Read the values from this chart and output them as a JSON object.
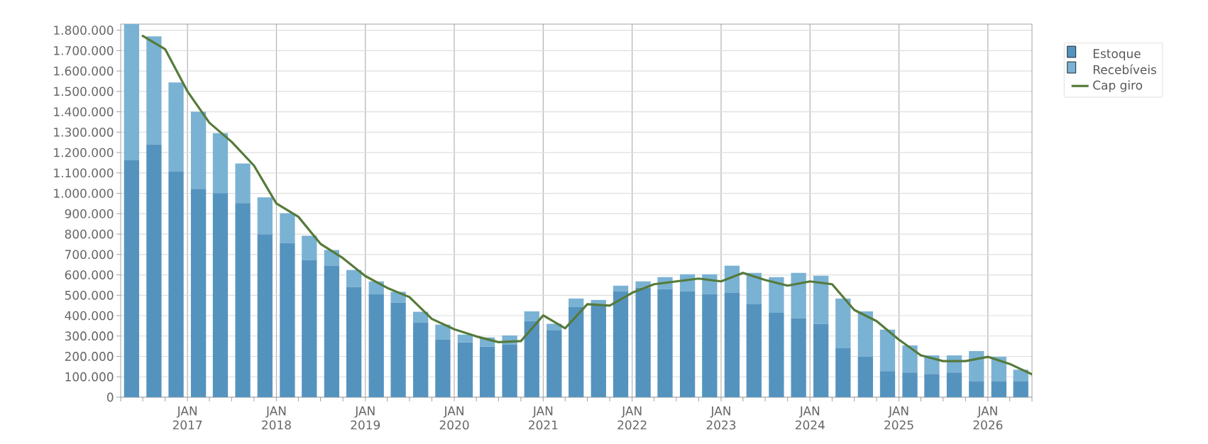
{
  "chart_data": {
    "type": "bar",
    "stacked": true,
    "grid": true,
    "legend": "right",
    "xlim": [
      "2016-04-01",
      "2026-07-01"
    ],
    "ylim": [
      0,
      1830000
    ],
    "xticks": [
      {
        "value": "2016-04-01",
        "label": null
      },
      {
        "value": "2016-07-01",
        "label": null
      },
      {
        "value": "2016-10-01",
        "label": null
      },
      {
        "value": "2017-01-01",
        "label": "JAN 2017"
      },
      {
        "value": "2017-04-01",
        "label": null
      },
      {
        "value": "2017-07-01",
        "label": null
      },
      {
        "value": "2017-10-01",
        "label": null
      },
      {
        "value": "2018-01-01",
        "label": "JAN 2018"
      },
      {
        "value": "2018-04-01",
        "label": null
      },
      {
        "value": "2018-07-01",
        "label": null
      },
      {
        "value": "2018-10-01",
        "label": null
      },
      {
        "value": "2019-01-01",
        "label": "JAN 2019"
      },
      {
        "value": "2019-04-01",
        "label": null
      },
      {
        "value": "2019-07-01",
        "label": null
      },
      {
        "value": "2019-10-01",
        "label": null
      },
      {
        "value": "2020-01-01",
        "label": "JAN 2020"
      },
      {
        "value": "2020-04-01",
        "label": null
      },
      {
        "value": "2020-07-01",
        "label": null
      },
      {
        "value": "2020-10-01",
        "label": null
      },
      {
        "value": "2021-01-01",
        "label": "JAN 2021"
      },
      {
        "value": "2021-04-01",
        "label": null
      },
      {
        "value": "2021-07-01",
        "label": null
      },
      {
        "value": "2021-10-01",
        "label": null
      },
      {
        "value": "2022-01-01",
        "label": "JAN 2022"
      },
      {
        "value": "2022-04-01",
        "label": null
      },
      {
        "value": "2022-07-01",
        "label": null
      },
      {
        "value": "2022-10-01",
        "label": null
      },
      {
        "value": "2023-01-01",
        "label": "JAN 2023"
      },
      {
        "value": "2023-04-01",
        "label": null
      },
      {
        "value": "2023-07-01",
        "label": null
      },
      {
        "value": "2023-10-01",
        "label": null
      },
      {
        "value": "2024-01-01",
        "label": "JAN 2024"
      },
      {
        "value": "2024-04-01",
        "label": null
      },
      {
        "value": "2024-07-01",
        "label": null
      },
      {
        "value": "2024-10-01",
        "label": null
      },
      {
        "value": "2025-01-01",
        "label": "JAN 2025"
      },
      {
        "value": "2025-04-01",
        "label": null
      },
      {
        "value": "2025-07-01",
        "label": null
      },
      {
        "value": "2025-10-01",
        "label": null
      },
      {
        "value": "2026-01-01",
        "label": "JAN 2026"
      },
      {
        "value": "2026-04-01",
        "label": null
      },
      {
        "value": "2026-07-01",
        "label": null
      }
    ],
    "yticks": [
      {
        "value": 0,
        "label": "0"
      },
      {
        "value": 100000,
        "label": "100.000"
      },
      {
        "value": 200000,
        "label": "200.000"
      },
      {
        "value": 300000,
        "label": "300.000"
      },
      {
        "value": 400000,
        "label": "400.000"
      },
      {
        "value": 500000,
        "label": "500.000"
      },
      {
        "value": 600000,
        "label": "600.000"
      },
      {
        "value": 700000,
        "label": "700.000"
      },
      {
        "value": 800000,
        "label": "800.000"
      },
      {
        "value": 900000,
        "label": "900.000"
      },
      {
        "value": 1000000,
        "label": "1.000.000"
      },
      {
        "value": 1100000,
        "label": "1.100.000"
      },
      {
        "value": 1200000,
        "label": "1.200.000"
      },
      {
        "value": 1300000,
        "label": "1.300.000"
      },
      {
        "value": 1400000,
        "label": "1.400.000"
      },
      {
        "value": 1500000,
        "label": "1.500.000"
      },
      {
        "value": 1600000,
        "label": "1.600.000"
      },
      {
        "value": 1700000,
        "label": "1.700.000"
      },
      {
        "value": 1800000,
        "label": "1.800.000"
      }
    ],
    "series": [
      {
        "name": "Estoque",
        "color": "#5593bf",
        "x": [
          "2016-05-16",
          "2016-08-16",
          "2016-11-15",
          "2017-02-15",
          "2017-05-16",
          "2017-08-16",
          "2017-11-15",
          "2018-02-15",
          "2018-05-16",
          "2018-08-16",
          "2018-11-15",
          "2019-02-15",
          "2019-05-16",
          "2019-08-16",
          "2019-11-15",
          "2020-02-15",
          "2020-05-16",
          "2020-08-16",
          "2020-11-15",
          "2021-02-15",
          "2021-05-16",
          "2021-08-16",
          "2021-11-15",
          "2022-02-15",
          "2022-05-16",
          "2022-08-16",
          "2022-11-15",
          "2023-02-15",
          "2023-05-16",
          "2023-08-16",
          "2023-11-15",
          "2024-02-15",
          "2024-05-16",
          "2024-08-16",
          "2024-11-15",
          "2025-02-15",
          "2025-05-16",
          "2025-08-16",
          "2025-11-15",
          "2026-02-15",
          "2026-05-16"
        ],
        "values": [
          1162000,
          1239000,
          1106000,
          1022000,
          1001000,
          952000,
          799000,
          757000,
          673000,
          645000,
          540000,
          505000,
          463000,
          366000,
          282000,
          270000,
          249000,
          258000,
          373000,
          330000,
          442000,
          456000,
          519000,
          536000,
          529000,
          519000,
          505000,
          512000,
          456000,
          414000,
          387000,
          359000,
          240000,
          198000,
          128000,
          121000,
          114000,
          121000,
          79000,
          79000,
          79000
        ]
      },
      {
        "name": "Recebíveis",
        "color": "#7ab2d4",
        "x": [
          "2016-05-16",
          "2016-08-16",
          "2016-11-15",
          "2017-02-15",
          "2017-05-16",
          "2017-08-16",
          "2017-11-15",
          "2018-02-15",
          "2018-05-16",
          "2018-08-16",
          "2018-11-15",
          "2019-02-15",
          "2019-05-16",
          "2019-08-16",
          "2019-11-15",
          "2020-02-15",
          "2020-05-16",
          "2020-08-16",
          "2020-11-15",
          "2021-02-15",
          "2021-05-16",
          "2021-08-16",
          "2021-11-15",
          "2022-02-15",
          "2022-05-16",
          "2022-08-16",
          "2022-11-15",
          "2023-02-15",
          "2023-05-16",
          "2023-08-16",
          "2023-11-15",
          "2024-02-15",
          "2024-05-16",
          "2024-08-16",
          "2024-11-15",
          "2025-02-15",
          "2025-05-16",
          "2025-08-16",
          "2025-11-15",
          "2026-02-15",
          "2026-05-16"
        ],
        "values": [
          668000,
          531000,
          438000,
          378000,
          294000,
          194000,
          181000,
          146000,
          119000,
          77000,
          84000,
          63000,
          54000,
          53000,
          74000,
          37000,
          44000,
          45000,
          48000,
          30000,
          42000,
          21000,
          28000,
          32000,
          60000,
          84000,
          98000,
          133000,
          154000,
          175000,
          223000,
          237000,
          244000,
          223000,
          203000,
          133000,
          91000,
          84000,
          147000,
          119000,
          56000
        ]
      },
      {
        "name": "Cap giro",
        "type": "line",
        "color": "#557a3a",
        "x": [
          "2016-07-01",
          "2016-10-01",
          "2017-01-01",
          "2017-04-01",
          "2017-07-01",
          "2017-10-01",
          "2018-01-01",
          "2018-04-01",
          "2018-07-01",
          "2018-10-01",
          "2019-01-01",
          "2019-04-01",
          "2019-07-01",
          "2019-10-01",
          "2020-01-01",
          "2020-04-01",
          "2020-07-01",
          "2020-10-01",
          "2021-01-01",
          "2021-04-01",
          "2021-07-01",
          "2021-10-01",
          "2022-01-01",
          "2022-04-01",
          "2022-07-01",
          "2022-10-01",
          "2023-01-01",
          "2023-04-01",
          "2023-07-01",
          "2023-10-01",
          "2024-01-01",
          "2024-04-01",
          "2024-07-01",
          "2024-10-01",
          "2025-01-01",
          "2025-04-01",
          "2025-07-01",
          "2025-10-01",
          "2026-01-01",
          "2026-04-01",
          "2026-07-01"
        ],
        "values": [
          1772000,
          1707000,
          1500000,
          1346000,
          1253000,
          1136000,
          950000,
          885000,
          752000,
          682000,
          594000,
          536000,
          491000,
          384000,
          333000,
          298000,
          270000,
          275000,
          401000,
          338000,
          456000,
          449000,
          512000,
          554000,
          568000,
          582000,
          568000,
          610000,
          575000,
          547000,
          568000,
          554000,
          428000,
          373000,
          282000,
          205000,
          177000,
          177000,
          198000,
          163000,
          112000
        ]
      }
    ]
  }
}
